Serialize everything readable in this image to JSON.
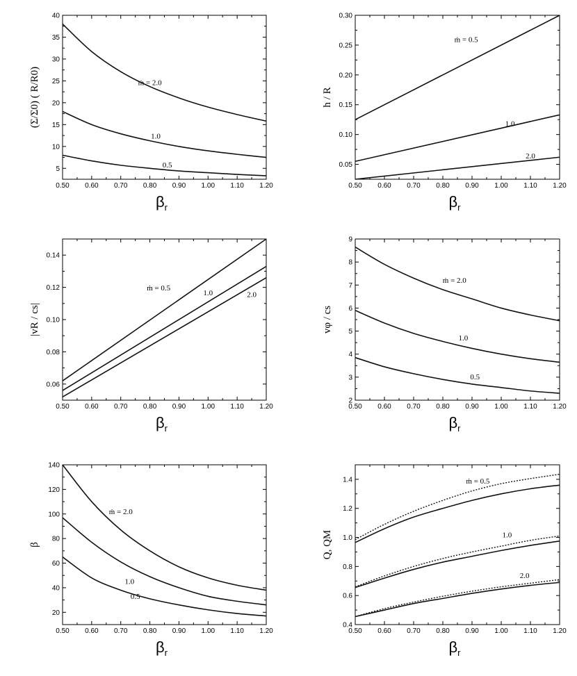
{
  "chart_data": [
    {
      "type": "line",
      "ylabel": "(Σ/Σ0) ( R/R0)",
      "xlabel": "βr",
      "xlim": [
        0.5,
        1.2
      ],
      "ylim": [
        2.5,
        40
      ],
      "xticks": [
        0.5,
        0.6,
        0.7,
        0.8,
        0.9,
        1.0,
        1.1,
        1.2
      ],
      "yticks": [
        5,
        10,
        15,
        20,
        25,
        30,
        35,
        40
      ],
      "x": [
        0.5,
        0.6,
        0.7,
        0.8,
        0.9,
        1.0,
        1.1,
        1.2
      ],
      "series": [
        {
          "name": "ṁ = 2.0",
          "values": [
            38.0,
            31.7,
            27.1,
            23.7,
            21.1,
            19.0,
            17.3,
            15.8
          ]
        },
        {
          "name": "1.0",
          "values": [
            18.0,
            15.0,
            12.9,
            11.3,
            10.0,
            9.0,
            8.2,
            7.5
          ]
        },
        {
          "name": "0.5",
          "values": [
            8.0,
            6.7,
            5.7,
            5.0,
            4.4,
            4.0,
            3.6,
            3.3
          ]
        }
      ],
      "labels": [
        {
          "text": "ṁ = 2.0",
          "x": 0.8,
          "y": 24
        },
        {
          "text": "1.0",
          "x": 0.82,
          "y": 11.8
        },
        {
          "text": "0.5",
          "x": 0.86,
          "y": 5.2
        }
      ]
    },
    {
      "type": "line",
      "ylabel": "h / R",
      "xlabel": "βr",
      "xlim": [
        0.5,
        1.2
      ],
      "ylim": [
        0.025,
        0.3
      ],
      "xticks": [
        0.5,
        0.6,
        0.7,
        0.8,
        0.9,
        1.0,
        1.1,
        1.2
      ],
      "yticks": [
        0.05,
        0.1,
        0.15,
        0.2,
        0.25,
        0.3
      ],
      "x": [
        0.5,
        1.2
      ],
      "series": [
        {
          "name": "ṁ = 0.5",
          "values": [
            0.125,
            0.3
          ]
        },
        {
          "name": "1.0",
          "values": [
            0.055,
            0.133
          ]
        },
        {
          "name": "2.0",
          "values": [
            0.025,
            0.062
          ]
        }
      ],
      "labels": [
        {
          "text": "ṁ = 0.5",
          "x": 0.88,
          "y": 0.255
        },
        {
          "text": "1.0",
          "x": 1.03,
          "y": 0.114
        },
        {
          "text": "2.0",
          "x": 1.1,
          "y": 0.06
        }
      ]
    },
    {
      "type": "line",
      "ylabel": "|vR / cs|",
      "xlabel": "βr",
      "xlim": [
        0.5,
        1.2
      ],
      "ylim": [
        0.05,
        0.15
      ],
      "xticks": [
        0.5,
        0.6,
        0.7,
        0.8,
        0.9,
        1.0,
        1.1,
        1.2
      ],
      "yticks": [
        0.06,
        0.08,
        0.1,
        0.12,
        0.14
      ],
      "x": [
        0.5,
        1.2
      ],
      "series": [
        {
          "name": "ṁ = 0.5",
          "values": [
            0.062,
            0.15
          ]
        },
        {
          "name": "1.0",
          "values": [
            0.056,
            0.133
          ]
        },
        {
          "name": "2.0",
          "values": [
            0.052,
            0.126
          ]
        }
      ],
      "labels": [
        {
          "text": "ṁ = 0.5",
          "x": 0.83,
          "y": 0.118
        },
        {
          "text": "1.0",
          "x": 1.0,
          "y": 0.115
        },
        {
          "text": "2.0",
          "x": 1.15,
          "y": 0.114
        }
      ]
    },
    {
      "type": "line",
      "ylabel": "vφ / cs",
      "xlabel": "βr",
      "xlim": [
        0.5,
        1.2
      ],
      "ylim": [
        2,
        9
      ],
      "xticks": [
        0.5,
        0.6,
        0.7,
        0.8,
        0.9,
        1.0,
        1.1,
        1.2
      ],
      "yticks": [
        2,
        3,
        4,
        5,
        6,
        7,
        8,
        9
      ],
      "x": [
        0.5,
        0.6,
        0.7,
        0.8,
        0.9,
        1.0,
        1.1,
        1.2
      ],
      "series": [
        {
          "name": "ṁ = 2.0",
          "values": [
            8.65,
            7.9,
            7.3,
            6.8,
            6.4,
            6.0,
            5.7,
            5.45
          ]
        },
        {
          "name": "1.0",
          "values": [
            5.9,
            5.35,
            4.9,
            4.55,
            4.25,
            4.0,
            3.8,
            3.65
          ]
        },
        {
          "name": "0.5",
          "values": [
            3.85,
            3.45,
            3.15,
            2.9,
            2.7,
            2.55,
            2.4,
            2.3
          ]
        }
      ],
      "labels": [
        {
          "text": "ṁ = 2.0",
          "x": 0.84,
          "y": 7.1
        },
        {
          "text": "1.0",
          "x": 0.87,
          "y": 4.6
        },
        {
          "text": "0.5",
          "x": 0.91,
          "y": 2.9
        }
      ]
    },
    {
      "type": "line",
      "ylabel": "β",
      "xlabel": "βr",
      "xlim": [
        0.5,
        1.2
      ],
      "ylim": [
        10,
        140
      ],
      "xticks": [
        0.5,
        0.6,
        0.7,
        0.8,
        0.9,
        1.0,
        1.1,
        1.2
      ],
      "yticks": [
        20,
        40,
        60,
        80,
        100,
        120,
        140
      ],
      "x": [
        0.5,
        0.6,
        0.7,
        0.8,
        0.9,
        1.0,
        1.1,
        1.2
      ],
      "series": [
        {
          "name": "ṁ = 2.0",
          "values": [
            140,
            110,
            87,
            70,
            57,
            48,
            42,
            38
          ]
        },
        {
          "name": "1.0",
          "values": [
            97,
            77,
            61,
            49,
            40,
            33,
            29,
            26
          ]
        },
        {
          "name": "0.5",
          "values": [
            65,
            48,
            38,
            31,
            26,
            22,
            19,
            17
          ]
        }
      ],
      "labels": [
        {
          "text": "ṁ = 2.0",
          "x": 0.7,
          "y": 100
        },
        {
          "text": "1.0",
          "x": 0.73,
          "y": 43
        },
        {
          "text": "0.5",
          "x": 0.75,
          "y": 31
        }
      ]
    },
    {
      "type": "line",
      "ylabel": "Q, QM",
      "xlabel": "βr",
      "xlim": [
        0.5,
        1.2
      ],
      "ylim": [
        0.4,
        1.5
      ],
      "xticks": [
        0.5,
        0.6,
        0.7,
        0.8,
        0.9,
        1.0,
        1.1,
        1.2
      ],
      "yticks": [
        0.4,
        0.6,
        0.8,
        1.0,
        1.2,
        1.4
      ],
      "x": [
        0.5,
        0.6,
        0.7,
        0.8,
        0.9,
        1.0,
        1.1,
        1.2
      ],
      "series": [
        {
          "values": [
            0.965,
            1.06,
            1.14,
            1.2,
            1.255,
            1.3,
            1.335,
            1.36
          ],
          "style": "solid"
        },
        {
          "values": [
            0.985,
            1.09,
            1.18,
            1.255,
            1.32,
            1.37,
            1.405,
            1.435
          ],
          "style": "dotted"
        },
        {
          "values": [
            0.655,
            0.72,
            0.78,
            0.83,
            0.87,
            0.91,
            0.945,
            0.975
          ],
          "style": "solid"
        },
        {
          "values": [
            0.66,
            0.735,
            0.8,
            0.855,
            0.9,
            0.94,
            0.98,
            1.01
          ],
          "style": "dotted"
        },
        {
          "values": [
            0.455,
            0.5,
            0.545,
            0.58,
            0.615,
            0.645,
            0.67,
            0.69
          ],
          "style": "solid"
        },
        {
          "values": [
            0.455,
            0.51,
            0.555,
            0.595,
            0.63,
            0.66,
            0.685,
            0.71
          ],
          "style": "dotted"
        }
      ],
      "labels": [
        {
          "text": "ṁ = 0.5",
          "x": 0.92,
          "y": 1.37
        },
        {
          "text": "1.0",
          "x": 1.02,
          "y": 1.0
        },
        {
          "text": "2.0",
          "x": 1.08,
          "y": 0.72
        }
      ]
    }
  ]
}
